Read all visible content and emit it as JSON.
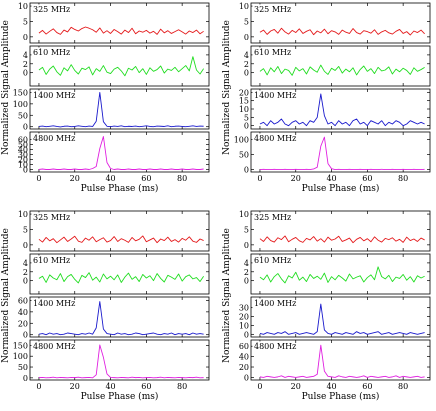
{
  "chart_data": {
    "type": "line",
    "xlabel": "Pulse Phase (ms)",
    "ylabel": "Normalized Signal Amplitude",
    "xlim": [
      -5,
      95
    ],
    "x_ticks": [
      0,
      20,
      40,
      60,
      80
    ],
    "x_start": 0,
    "x_step": 2,
    "colors": {
      "325 MHz": "#e41a1c",
      "610 MHz": "#22dd22",
      "1400 MHz": "#1a1acc",
      "4800 MHz": "#e020e0"
    },
    "charts": [
      {
        "position": "top-left",
        "panels": [
          {
            "label": "325 MHz",
            "ylim": [
              -2,
              11
            ],
            "yticks": [
              0,
              5,
              10
            ],
            "values": [
              1.2,
              2.1,
              0.9,
              1.8,
              2.6,
              1.4,
              0.8,
              2.2,
              1.6,
              3.1,
              2.4,
              1.9,
              2.7,
              3.2,
              2.8,
              2.3,
              1.5,
              2.9,
              1.2,
              2.0,
              1.1,
              2.4,
              1.7,
              0.9,
              2.2,
              1.4,
              2.8,
              1.0,
              1.9,
              1.5,
              2.1,
              1.2,
              1.8,
              0.8,
              2.5,
              1.3,
              2.0,
              1.1,
              1.7,
              2.3,
              1.6,
              0.9,
              1.9,
              1.4,
              2.2,
              1.0,
              1.8
            ]
          },
          {
            "label": "610 MHz",
            "ylim": [
              -3,
              6
            ],
            "yticks": [
              0,
              2,
              4
            ],
            "values": [
              0.6,
              1.2,
              -0.4,
              0.8,
              1.5,
              0.2,
              -0.6,
              1.1,
              0.4,
              1.8,
              0.5,
              -0.3,
              1.0,
              0.7,
              1.3,
              -0.5,
              0.9,
              0.3,
              1.6,
              0.1,
              -0.2,
              0.8,
              1.2,
              0.4,
              -0.7,
              1.0,
              0.6,
              1.4,
              0.0,
              0.9,
              -0.4,
              1.1,
              0.3,
              0.7,
              1.5,
              -0.1,
              0.8,
              0.5,
              1.2,
              0.2,
              0.9,
              1.6,
              0.4,
              3.6,
              0.6,
              -0.3,
              0.9
            ]
          },
          {
            "label": "1400 MHz",
            "ylim": [
              -10,
              165
            ],
            "yticks": [
              0,
              50,
              100,
              150
            ],
            "values": [
              1,
              3,
              0,
              2,
              4,
              1,
              -1,
              2,
              3,
              0,
              1,
              4,
              2,
              0,
              3,
              1,
              24,
              150,
              22,
              2,
              0,
              3,
              1,
              4,
              0,
              2,
              1,
              3,
              0,
              2,
              4,
              1,
              0,
              3,
              2,
              1,
              4,
              0,
              2,
              3,
              1,
              0,
              2,
              4,
              1,
              3,
              2
            ]
          },
          {
            "label": "4800 MHz",
            "ylim": [
              -5,
              75
            ],
            "yticks": [
              0,
              10,
              20,
              30,
              40,
              50,
              60
            ],
            "values": [
              0,
              1,
              0,
              0,
              1,
              0,
              0,
              1,
              0,
              0,
              1,
              0,
              0,
              1,
              0,
              2,
              6,
              42,
              66,
              14,
              2,
              0,
              1,
              0,
              0,
              1,
              0,
              0,
              1,
              0,
              0,
              1,
              0,
              0,
              1,
              0,
              0,
              1,
              0,
              0,
              1,
              0,
              0,
              1,
              0,
              0,
              1
            ]
          }
        ]
      },
      {
        "position": "top-right",
        "panels": [
          {
            "label": "325 MHz",
            "ylim": [
              -2,
              11
            ],
            "yticks": [
              0,
              5,
              10
            ],
            "values": [
              1.5,
              2.2,
              0.8,
              1.9,
              2.4,
              1.2,
              2.8,
              1.6,
              0.9,
              2.1,
              1.4,
              2.6,
              1.1,
              1.8,
              2.3,
              0.7,
              1.9,
              1.3,
              2.5,
              1.0,
              2.0,
              1.6,
              0.8,
              2.2,
              1.5,
              1.1,
              2.7,
              1.4,
              0.9,
              2.0,
              1.7,
              1.2,
              2.3,
              0.8,
              1.6,
              2.1,
              1.3,
              0.9,
              1.8,
              2.4,
              1.1,
              1.7,
              0.6,
              1.9,
              1.4,
              2.2,
              1.0
            ]
          },
          {
            "label": "610 MHz",
            "ylim": [
              -3,
              6
            ],
            "yticks": [
              0,
              2,
              4
            ],
            "values": [
              0.3,
              0.9,
              -0.5,
              1.1,
              0.2,
              1.4,
              -0.2,
              0.8,
              0.5,
              -0.6,
              1.2,
              0.4,
              0.9,
              -0.3,
              1.3,
              0.6,
              0.1,
              1.7,
              0.3,
              -0.4,
              1.0,
              0.5,
              1.4,
              -0.1,
              0.8,
              0.2,
              1.1,
              -0.5,
              0.7,
              1.5,
              0.3,
              0.9,
              -0.2,
              1.2,
              0.4,
              0.6,
              1.3,
              -0.3,
              0.8,
              0.2,
              1.0,
              0.5,
              -0.4,
              1.1,
              0.3,
              0.7,
              1.2
            ]
          },
          {
            "label": "1400 MHz",
            "ylim": [
              -2,
              22
            ],
            "yticks": [
              0,
              5,
              10,
              15,
              20
            ],
            "values": [
              1,
              2,
              0,
              3,
              1,
              2,
              4,
              1,
              0,
              2,
              3,
              1,
              2,
              0,
              3,
              2,
              5,
              19,
              6,
              1,
              2,
              0,
              3,
              1,
              2,
              0,
              3,
              4,
              1,
              2,
              0,
              3,
              2,
              1,
              3,
              0,
              2,
              1,
              3,
              2,
              0,
              1,
              3,
              2,
              1,
              2,
              1
            ]
          },
          {
            "label": "4800 MHz",
            "ylim": [
              -8,
              125
            ],
            "yticks": [
              0,
              50,
              100
            ],
            "values": [
              0,
              1,
              0,
              0,
              1,
              0,
              0,
              1,
              0,
              0,
              1,
              0,
              0,
              1,
              0,
              2,
              8,
              78,
              108,
              20,
              3,
              0,
              1,
              0,
              0,
              1,
              0,
              0,
              1,
              0,
              0,
              1,
              0,
              0,
              1,
              0,
              0,
              1,
              0,
              0,
              1,
              0,
              0,
              1,
              0,
              0,
              1
            ]
          }
        ]
      },
      {
        "position": "bottom-left",
        "panels": [
          {
            "label": "325 MHz",
            "ylim": [
              -2,
              11
            ],
            "yticks": [
              0,
              5,
              10
            ],
            "values": [
              1.8,
              0.9,
              2.4,
              1.3,
              2.0,
              0.7,
              1.6,
              2.5,
              1.1,
              1.9,
              2.8,
              1.2,
              0.8,
              2.2,
              1.5,
              2.6,
              1.0,
              1.7,
              2.3,
              0.9,
              1.4,
              2.7,
              1.1,
              2.0,
              1.5,
              0.8,
              2.4,
              1.3,
              1.8,
              2.9,
              1.0,
              1.6,
              2.2,
              0.7,
              1.9,
              1.4,
              2.5,
              1.1,
              1.7,
              0.9,
              2.1,
              1.5,
              2.6,
              1.2,
              0.8,
              1.9,
              1.4
            ]
          },
          {
            "label": "610 MHz",
            "ylim": [
              -3,
              6
            ],
            "yticks": [
              0,
              2,
              4
            ],
            "values": [
              0.5,
              1.0,
              -0.4,
              1.3,
              0.6,
              0.2,
              1.6,
              -0.2,
              0.9,
              1.4,
              0.3,
              -0.5,
              1.2,
              0.7,
              1.8,
              0.1,
              0.8,
              -0.3,
              1.5,
              0.4,
              1.0,
              0.2,
              1.3,
              -0.4,
              0.8,
              1.7,
              0.3,
              0.9,
              -0.2,
              1.4,
              0.6,
              1.1,
              0.0,
              1.6,
              0.5,
              -0.3,
              1.2,
              0.8,
              0.3,
              1.5,
              -0.1,
              0.9,
              1.3,
              0.4,
              0.7,
              -0.2,
              1.0
            ]
          },
          {
            "label": "1400 MHz",
            "ylim": [
              -4,
              66
            ],
            "yticks": [
              0,
              20,
              40,
              60
            ],
            "values": [
              1,
              2,
              0,
              3,
              1,
              2,
              0,
              1,
              3,
              2,
              1,
              0,
              2,
              1,
              3,
              1,
              12,
              58,
              10,
              2,
              1,
              0,
              3,
              1,
              2,
              0,
              1,
              3,
              2,
              0,
              1,
              2,
              3,
              1,
              0,
              2,
              1,
              3,
              0,
              2,
              1,
              2,
              0,
              3,
              1,
              2,
              1
            ]
          },
          {
            "label": "4800 MHz",
            "ylim": [
              -10,
              175
            ],
            "yticks": [
              0,
              50,
              100,
              150
            ],
            "values": [
              1,
              2,
              0,
              1,
              3,
              0,
              2,
              1,
              0,
              2,
              1,
              3,
              0,
              1,
              2,
              0,
              14,
              152,
              95,
              18,
              2,
              1,
              0,
              2,
              1,
              0,
              3,
              1,
              2,
              0,
              1,
              2,
              0,
              1,
              3,
              0,
              2,
              1,
              0,
              2,
              1,
              0,
              2,
              1,
              3,
              0,
              1
            ]
          }
        ]
      },
      {
        "position": "bottom-right",
        "panels": [
          {
            "label": "325 MHz",
            "ylim": [
              -2,
              11
            ],
            "yticks": [
              0,
              5,
              10
            ],
            "values": [
              2.0,
              1.1,
              2.6,
              1.4,
              0.9,
              2.3,
              1.7,
              2.9,
              1.0,
              1.8,
              2.4,
              1.3,
              0.8,
              2.1,
              1.6,
              2.7,
              1.2,
              2.0,
              0.9,
              2.5,
              1.5,
              1.9,
              2.8,
              1.1,
              1.6,
              2.2,
              0.7,
              1.8,
              2.4,
              1.3,
              2.0,
              1.0,
              2.6,
              1.5,
              0.9,
              2.1,
              1.7,
              2.3,
              1.2,
              1.8,
              0.8,
              2.5,
              1.4,
              1.9,
              1.1,
              2.2,
              1.6
            ]
          },
          {
            "label": "610 MHz",
            "ylim": [
              -3,
              6
            ],
            "yticks": [
              0,
              2,
              4
            ],
            "values": [
              0.8,
              0.2,
              1.3,
              -0.3,
              0.9,
              1.6,
              0.4,
              -0.5,
              1.1,
              0.6,
              1.9,
              0.1,
              0.8,
              -0.2,
              1.4,
              0.5,
              1.0,
              0.3,
              1.7,
              -0.4,
              0.9,
              0.2,
              1.2,
              0.6,
              -0.1,
              1.5,
              0.4,
              0.8,
              1.1,
              -0.3,
              0.7,
              1.3,
              0.2,
              3.1,
              0.9,
              0.4,
              1.2,
              -0.2,
              0.8,
              0.5,
              1.4,
              0.1,
              0.9,
              -0.3,
              1.1,
              0.6,
              1.0
            ]
          },
          {
            "label": "1400 MHz",
            "ylim": [
              -3,
              42
            ],
            "yticks": [
              0,
              10,
              20,
              30
            ],
            "values": [
              1,
              0,
              2,
              1,
              0,
              2,
              1,
              3,
              0,
              1,
              2,
              0,
              1,
              2,
              1,
              0,
              3,
              34,
              5,
              1,
              0,
              2,
              1,
              0,
              2,
              1,
              0,
              3,
              1,
              2,
              0,
              1,
              2,
              3,
              0,
              1,
              2,
              0,
              1,
              2,
              1,
              0,
              2,
              1,
              0,
              1,
              2
            ]
          },
          {
            "label": "4800 MHz",
            "ylim": [
              -5,
              72
            ],
            "yticks": [
              0,
              20,
              40,
              60
            ],
            "values": [
              1,
              0,
              2,
              1,
              0,
              1,
              3,
              0,
              2,
              1,
              0,
              1,
              2,
              0,
              1,
              2,
              6,
              62,
              12,
              2,
              1,
              0,
              3,
              1,
              0,
              2,
              1,
              0,
              1,
              3,
              0,
              2,
              1,
              0,
              1,
              2,
              0,
              1,
              3,
              0,
              2,
              1,
              0,
              1,
              2,
              0,
              1
            ]
          }
        ]
      }
    ]
  }
}
